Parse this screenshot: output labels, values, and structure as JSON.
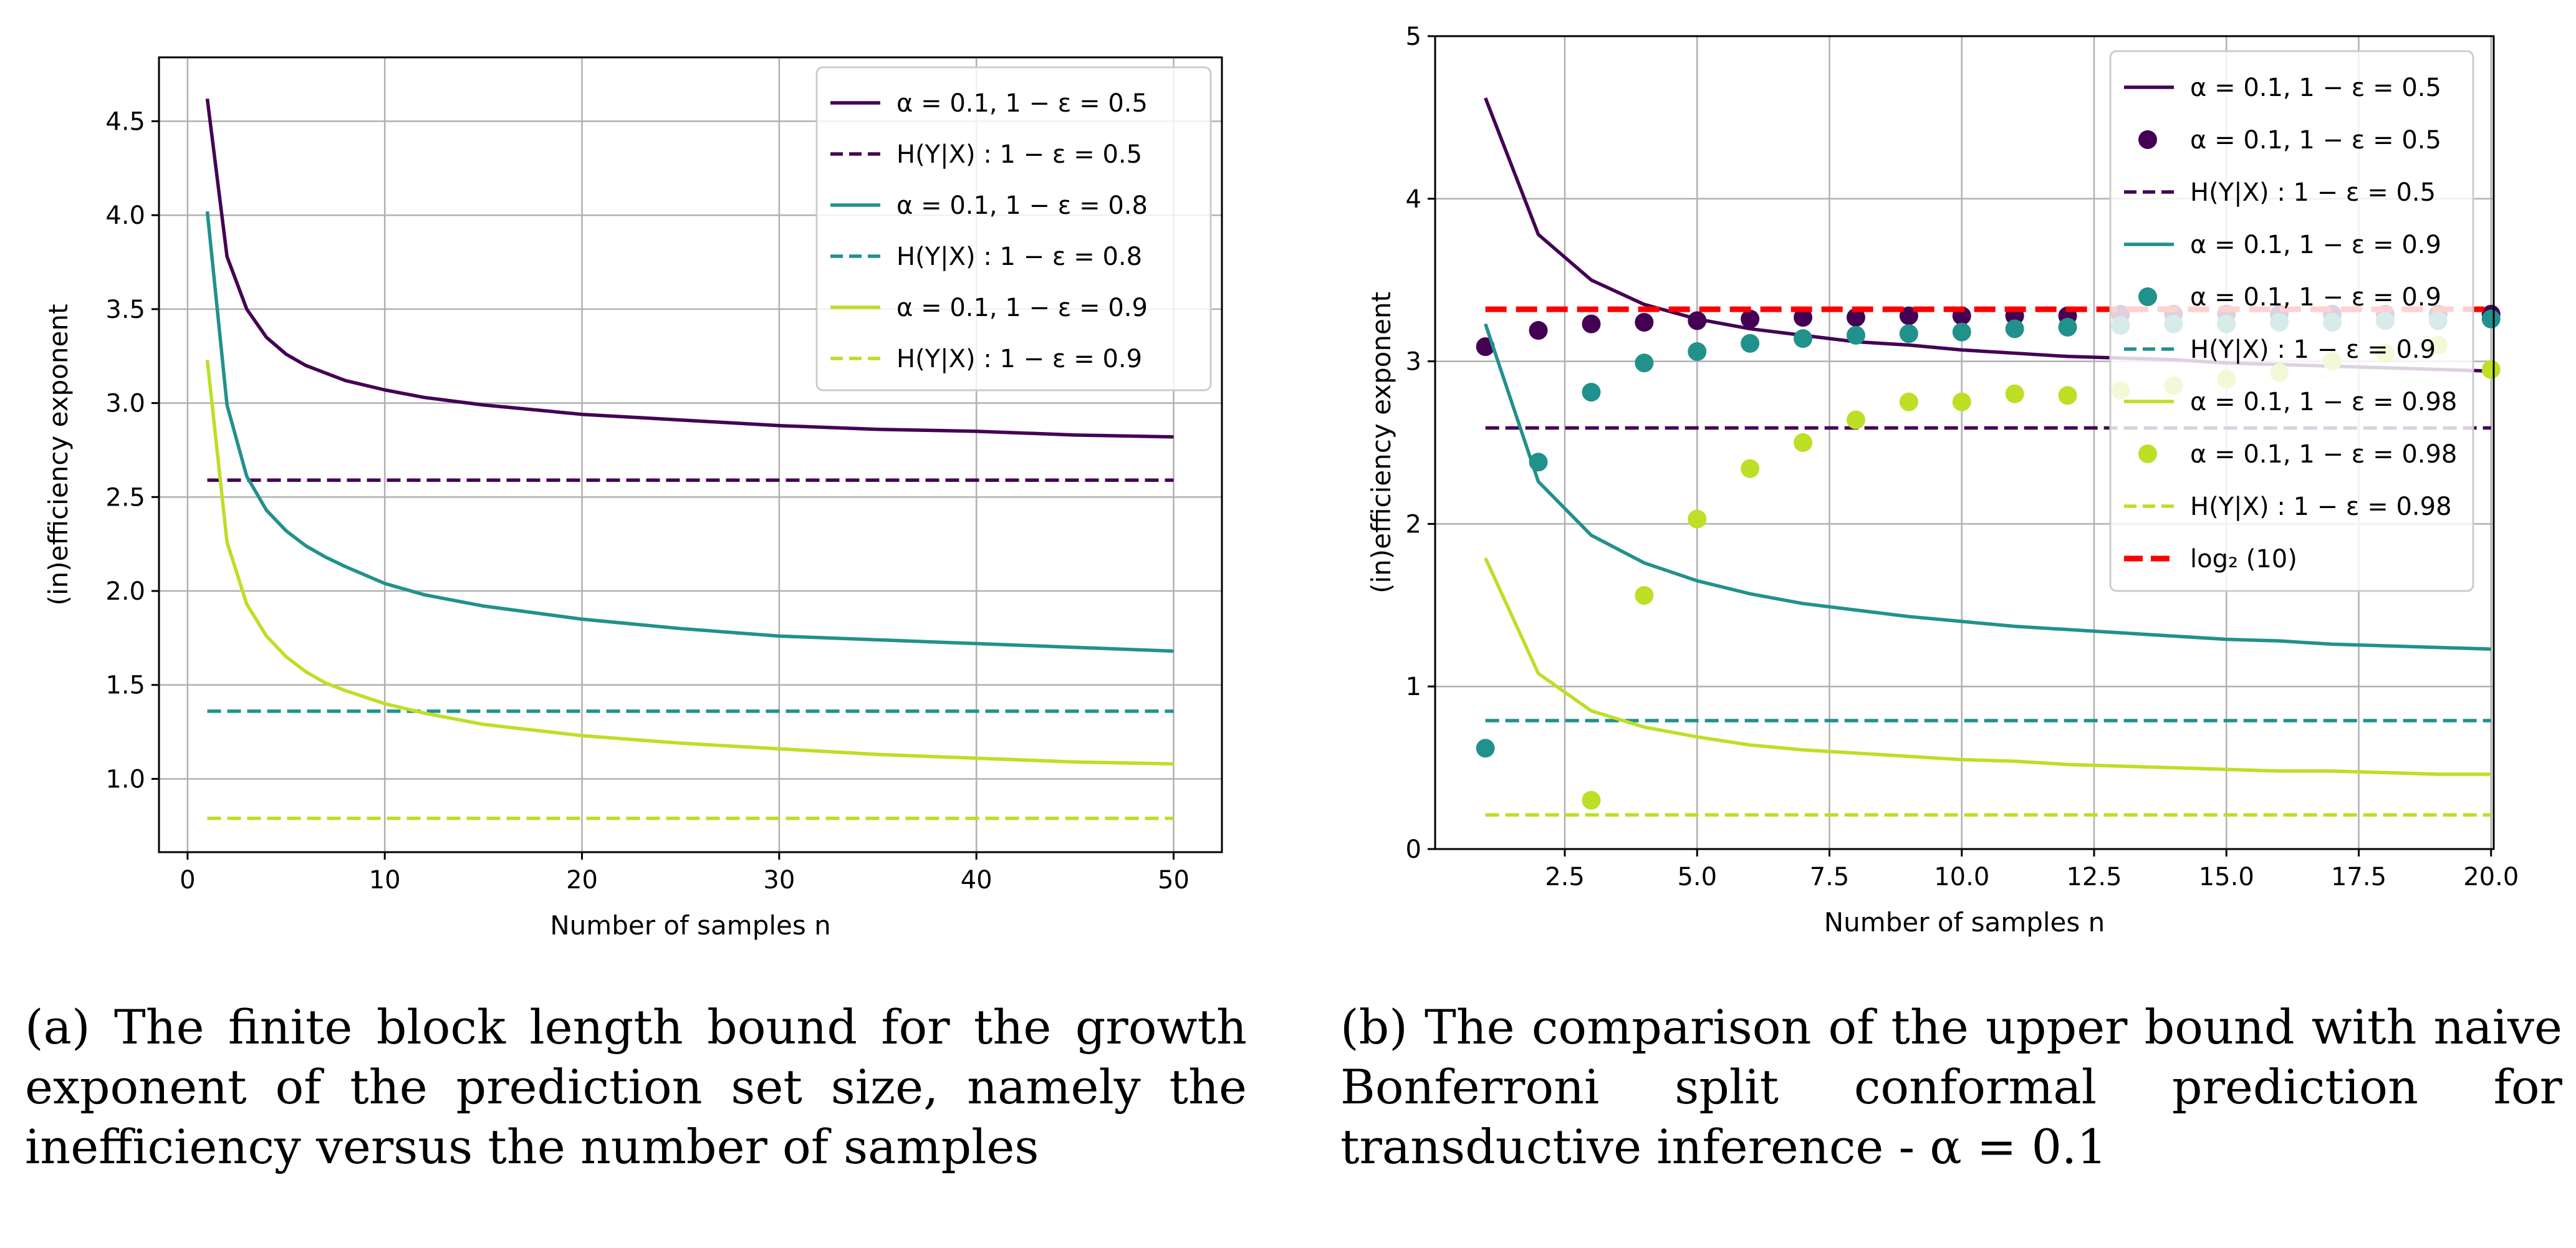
{
  "chart_data": [
    {
      "type": "line",
      "xlabel": "Number of samples n",
      "ylabel": "(in)efficiency exponent",
      "xlim": [
        -1.45,
        52.45
      ],
      "ylim": [
        0.61,
        4.84
      ],
      "xticks": [
        0,
        10,
        20,
        30,
        40,
        50
      ],
      "xtick_labels": [
        "0",
        "10",
        "20",
        "30",
        "40",
        "50"
      ],
      "yticks": [
        1.0,
        1.5,
        2.0,
        2.5,
        3.0,
        3.5,
        4.0,
        4.5
      ],
      "ytick_labels": [
        "1.0",
        "1.5",
        "2.0",
        "2.5",
        "3.0",
        "3.5",
        "4.0",
        "4.5"
      ],
      "grid": true,
      "legend_position": "top-right",
      "series": [
        {
          "name": "α = 0.1, 1 − ε = 0.5",
          "style": "solid",
          "color": "#440154",
          "x": [
            1,
            2,
            3,
            4,
            5,
            6,
            7,
            8,
            10,
            12,
            15,
            20,
            25,
            30,
            35,
            40,
            45,
            50
          ],
          "values": [
            4.62,
            3.78,
            3.5,
            3.35,
            3.26,
            3.2,
            3.16,
            3.12,
            3.07,
            3.03,
            2.99,
            2.94,
            2.91,
            2.88,
            2.86,
            2.85,
            2.83,
            2.82
          ]
        },
        {
          "name": "H(Y|X) : 1 − ε = 0.5",
          "style": "dashed",
          "color": "#440154",
          "x": [
            1,
            50
          ],
          "values": [
            2.59,
            2.59
          ]
        },
        {
          "name": "α = 0.1, 1 − ε = 0.8",
          "style": "solid",
          "color": "#21918c",
          "x": [
            1,
            2,
            3,
            4,
            5,
            6,
            7,
            8,
            10,
            12,
            15,
            20,
            25,
            30,
            35,
            40,
            45,
            50
          ],
          "values": [
            4.02,
            2.99,
            2.61,
            2.43,
            2.32,
            2.24,
            2.18,
            2.13,
            2.04,
            1.98,
            1.92,
            1.85,
            1.8,
            1.76,
            1.74,
            1.72,
            1.7,
            1.68
          ]
        },
        {
          "name": "H(Y|X) : 1 − ε = 0.8",
          "style": "dashed",
          "color": "#21918c",
          "x": [
            1,
            50
          ],
          "values": [
            1.36,
            1.36
          ]
        },
        {
          "name": "α = 0.1, 1 − ε = 0.9",
          "style": "solid",
          "color": "#bddf26",
          "x": [
            1,
            2,
            3,
            4,
            5,
            6,
            7,
            8,
            10,
            12,
            15,
            20,
            25,
            30,
            35,
            40,
            45,
            50
          ],
          "values": [
            3.23,
            2.26,
            1.93,
            1.76,
            1.65,
            1.57,
            1.51,
            1.47,
            1.4,
            1.35,
            1.29,
            1.23,
            1.19,
            1.16,
            1.13,
            1.11,
            1.09,
            1.08
          ]
        },
        {
          "name": "H(Y|X) : 1 − ε = 0.9",
          "style": "dashed",
          "color": "#bddf26",
          "x": [
            1,
            50
          ],
          "values": [
            0.79,
            0.79
          ]
        }
      ],
      "caption": "(a) The finite block length bound for the growth exponent of the prediction set size, namely the inefficiency versus the number of samples"
    },
    {
      "type": "line",
      "xlabel": "Number of samples n",
      "ylabel": "(in)efficiency exponent",
      "xlim": [
        0.05,
        20.05
      ],
      "ylim": [
        0,
        5
      ],
      "xticks": [
        2.5,
        5.0,
        7.5,
        10.0,
        12.5,
        15.0,
        17.5,
        20.0
      ],
      "xtick_labels": [
        "2.5",
        "5.0",
        "7.5",
        "10.0",
        "12.5",
        "15.0",
        "17.5",
        "20.0"
      ],
      "yticks": [
        0,
        1,
        2,
        3,
        4,
        5
      ],
      "ytick_labels": [
        "0",
        "1",
        "2",
        "3",
        "4",
        "5"
      ],
      "grid": true,
      "legend_position": "top-right",
      "series": [
        {
          "name": "α = 0.1, 1 − ε = 0.5",
          "style": "solid",
          "color": "#440154",
          "x": [
            1,
            2,
            3,
            4,
            5,
            6,
            7,
            8,
            9,
            10,
            11,
            12,
            13,
            14,
            15,
            16,
            17,
            18,
            19,
            20
          ],
          "values": [
            4.62,
            3.78,
            3.5,
            3.35,
            3.26,
            3.2,
            3.16,
            3.12,
            3.1,
            3.07,
            3.05,
            3.03,
            3.02,
            3.01,
            2.99,
            2.98,
            2.97,
            2.96,
            2.95,
            2.94
          ]
        },
        {
          "name": "α = 0.1, 1 − ε = 0.5",
          "style": "markers",
          "color": "#440154",
          "x": [
            1,
            2,
            3,
            4,
            5,
            6,
            7,
            8,
            9,
            10,
            11,
            12,
            13,
            14,
            15,
            16,
            17,
            18,
            19,
            20
          ],
          "values": [
            3.09,
            3.19,
            3.23,
            3.24,
            3.25,
            3.26,
            3.27,
            3.27,
            3.28,
            3.28,
            3.28,
            3.28,
            3.29,
            3.29,
            3.29,
            3.29,
            3.29,
            3.29,
            3.29,
            3.29
          ]
        },
        {
          "name": "H(Y|X) : 1 − ε = 0.5",
          "style": "dashed",
          "color": "#440154",
          "x": [
            1,
            20
          ],
          "values": [
            2.59,
            2.59
          ]
        },
        {
          "name": "α = 0.1, 1 − ε = 0.9",
          "style": "solid",
          "color": "#21918c",
          "x": [
            1,
            2,
            3,
            4,
            5,
            6,
            7,
            8,
            9,
            10,
            11,
            12,
            13,
            14,
            15,
            16,
            17,
            18,
            19,
            20
          ],
          "values": [
            3.23,
            2.26,
            1.93,
            1.76,
            1.65,
            1.57,
            1.51,
            1.47,
            1.43,
            1.4,
            1.37,
            1.35,
            1.33,
            1.31,
            1.29,
            1.28,
            1.26,
            1.25,
            1.24,
            1.23
          ]
        },
        {
          "name": "α = 0.1, 1 − ε = 0.9",
          "style": "markers",
          "color": "#21918c",
          "x": [
            1,
            2,
            3,
            4,
            5,
            6,
            7,
            8,
            9,
            10,
            11,
            12,
            13,
            14,
            15,
            16,
            17,
            18,
            19,
            20
          ],
          "values": [
            0.62,
            2.38,
            2.81,
            2.99,
            3.06,
            3.11,
            3.14,
            3.16,
            3.17,
            3.18,
            3.2,
            3.21,
            3.22,
            3.23,
            3.23,
            3.24,
            3.24,
            3.25,
            3.25,
            3.26
          ]
        },
        {
          "name": "H(Y|X) : 1 − ε = 0.9",
          "style": "dashed",
          "color": "#21918c",
          "x": [
            1,
            20
          ],
          "values": [
            0.79,
            0.79
          ]
        },
        {
          "name": "α = 0.1, 1 − ε = 0.98",
          "style": "solid",
          "color": "#bddf26",
          "x": [
            1,
            2,
            3,
            4,
            5,
            6,
            7,
            8,
            9,
            10,
            11,
            12,
            13,
            14,
            15,
            16,
            17,
            18,
            19,
            20
          ],
          "values": [
            1.79,
            1.08,
            0.85,
            0.75,
            0.69,
            0.64,
            0.61,
            0.59,
            0.57,
            0.55,
            0.54,
            0.52,
            0.51,
            0.5,
            0.49,
            0.48,
            0.48,
            0.47,
            0.46,
            0.46
          ]
        },
        {
          "name": "α = 0.1, 1 − ε = 0.98",
          "style": "markers",
          "color": "#bddf26",
          "x": [
            3,
            4,
            5,
            6,
            7,
            8,
            9,
            10,
            11,
            12,
            13,
            14,
            15,
            16,
            17,
            18,
            19,
            20
          ],
          "values": [
            0.3,
            1.56,
            2.03,
            2.34,
            2.5,
            2.64,
            2.75,
            2.75,
            2.8,
            2.79,
            2.82,
            2.85,
            2.89,
            2.93,
            3.0,
            3.05,
            3.1,
            2.95
          ]
        },
        {
          "name": "H(Y|X) : 1 − ε = 0.98",
          "style": "dashed",
          "color": "#bddf26",
          "x": [
            1,
            20
          ],
          "values": [
            0.21,
            0.21
          ]
        },
        {
          "name": "log₂ (10)",
          "style": "dashed",
          "color": "#ff0000",
          "x": [
            1,
            20
          ],
          "values": [
            3.32,
            3.32
          ]
        }
      ],
      "caption": "(b) The comparison of the upper bound with naive Bonferroni split conformal prediction for transductive inference - α = 0.1"
    }
  ]
}
